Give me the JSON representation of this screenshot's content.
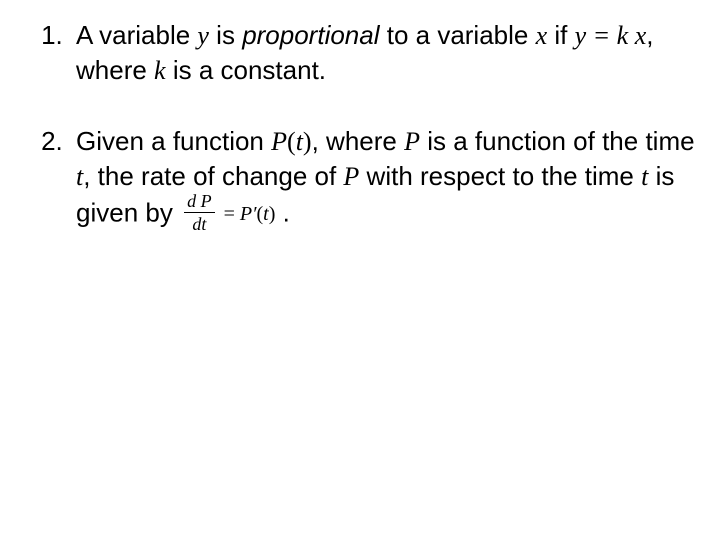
{
  "background_color": "#ffffff",
  "text_color": "#000000",
  "body_font": "Arial",
  "math_font": "Times New Roman",
  "base_fontsize_pt": 20,
  "math_inline_fontsize_pt": 15,
  "items": [
    {
      "parts": {
        "a": "A variable ",
        "y": "y",
        "b": " is ",
        "prop": "proportional",
        "c": " to a variable ",
        "x": "x",
        "d": " if ",
        "eq": "y = k x",
        "e": ", where ",
        "k": "k",
        "f": " is a constant."
      }
    },
    {
      "parts": {
        "a": "Given a function ",
        "P1": "P",
        "lp1": "(",
        "t1": "t",
        "rp1": ")",
        "b": ", where ",
        "P2": "P",
        "c": " is a function of the time ",
        "t2": "t",
        "d": ", the rate of change of ",
        "P3": "P",
        "e": " with respect to the time ",
        "t3": "t",
        "f": " is given by ",
        "frac_num": "d P",
        "frac_den": "dt",
        "eq_sign": " = ",
        "Pprime": "P′",
        "lp2": "(",
        "t4": "t",
        "rp2": ")",
        "period": " ."
      }
    }
  ]
}
